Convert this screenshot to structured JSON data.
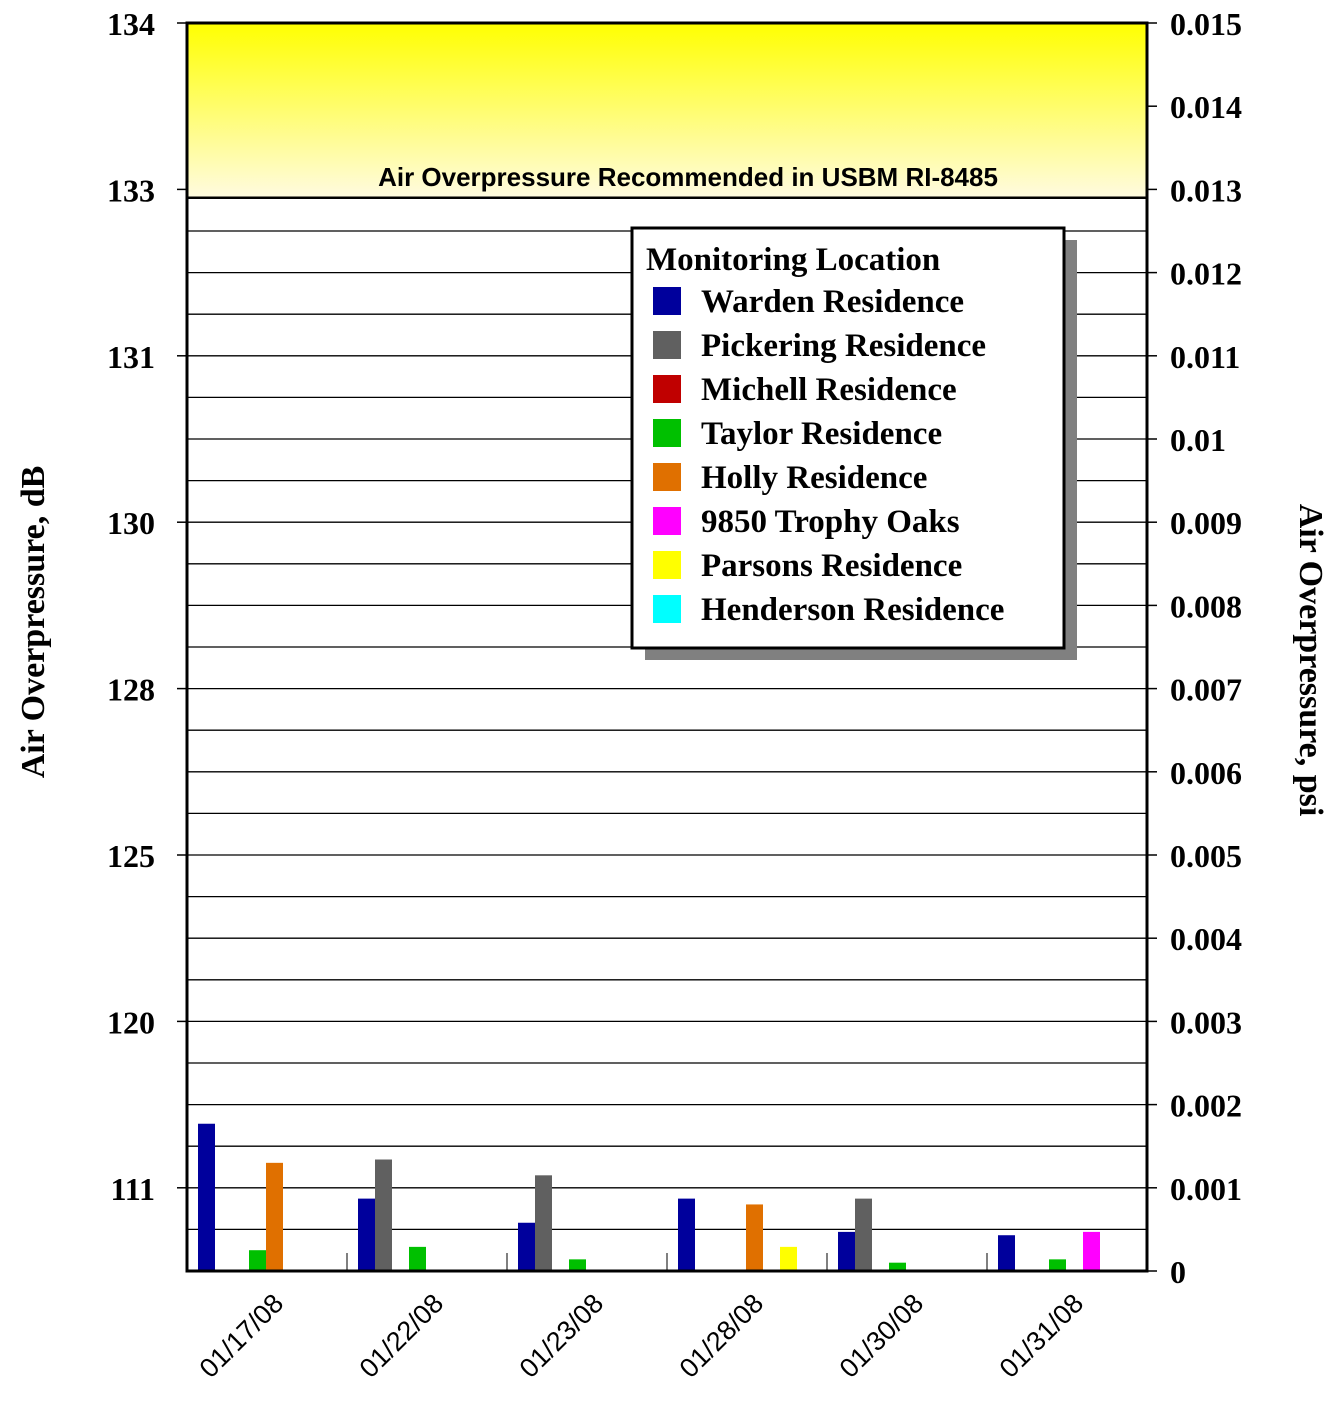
{
  "chart_data": {
    "type": "bar",
    "ylabel_left": "Air Overpressure, dB",
    "ylabel_right": "Air Overpressure, psi",
    "left_ticks": [
      "134",
      "133",
      "131",
      "130",
      "128",
      "125",
      "120",
      "111"
    ],
    "right_ticks": [
      "0.015",
      "0.014",
      "0.013",
      "0.012",
      "0.011",
      "0.01",
      "0.009",
      "0.008",
      "0.007",
      "0.006",
      "0.005",
      "0.004",
      "0.003",
      "0.002",
      "0.001",
      "0"
    ],
    "ylim_psi": [
      0,
      0.015
    ],
    "threshold_psi": 0.0129,
    "threshold_label": "Air Overpressure Recommended in USBM RI-8485",
    "categories": [
      "01/17/08",
      "01/22/08",
      "01/23/08",
      "01/28/08",
      "01/30/08",
      "01/31/08"
    ],
    "legend_title": "Monitoring Location",
    "series": [
      {
        "name": "Warden Residence",
        "color": "#00009c",
        "values": [
          0.00177,
          0.00087,
          0.00058,
          0.00087,
          0.00047,
          0.00043
        ]
      },
      {
        "name": "Pickering Residence",
        "color": "#606060",
        "values": [
          null,
          0.00134,
          0.00115,
          null,
          0.00087,
          null
        ]
      },
      {
        "name": "Michell Residence",
        "color": "#c00000",
        "values": [
          null,
          null,
          null,
          null,
          null,
          null
        ]
      },
      {
        "name": "Taylor Residence",
        "color": "#00c000",
        "values": [
          0.00025,
          0.00029,
          0.00014,
          null,
          0.0001,
          0.00014
        ]
      },
      {
        "name": "Holly Residence",
        "color": "#e07000",
        "values": [
          0.0013,
          null,
          null,
          0.0008,
          null,
          null
        ]
      },
      {
        "name": "9850 Trophy Oaks",
        "color": "#ff00ff",
        "values": [
          null,
          null,
          null,
          null,
          null,
          0.00047
        ]
      },
      {
        "name": "Parsons Residence",
        "color": "#ffff00",
        "values": [
          null,
          null,
          null,
          0.00029,
          null,
          null
        ]
      },
      {
        "name": "Henderson Residence",
        "color": "#00ffff",
        "values": [
          null,
          null,
          null,
          null,
          null,
          null
        ]
      }
    ]
  }
}
